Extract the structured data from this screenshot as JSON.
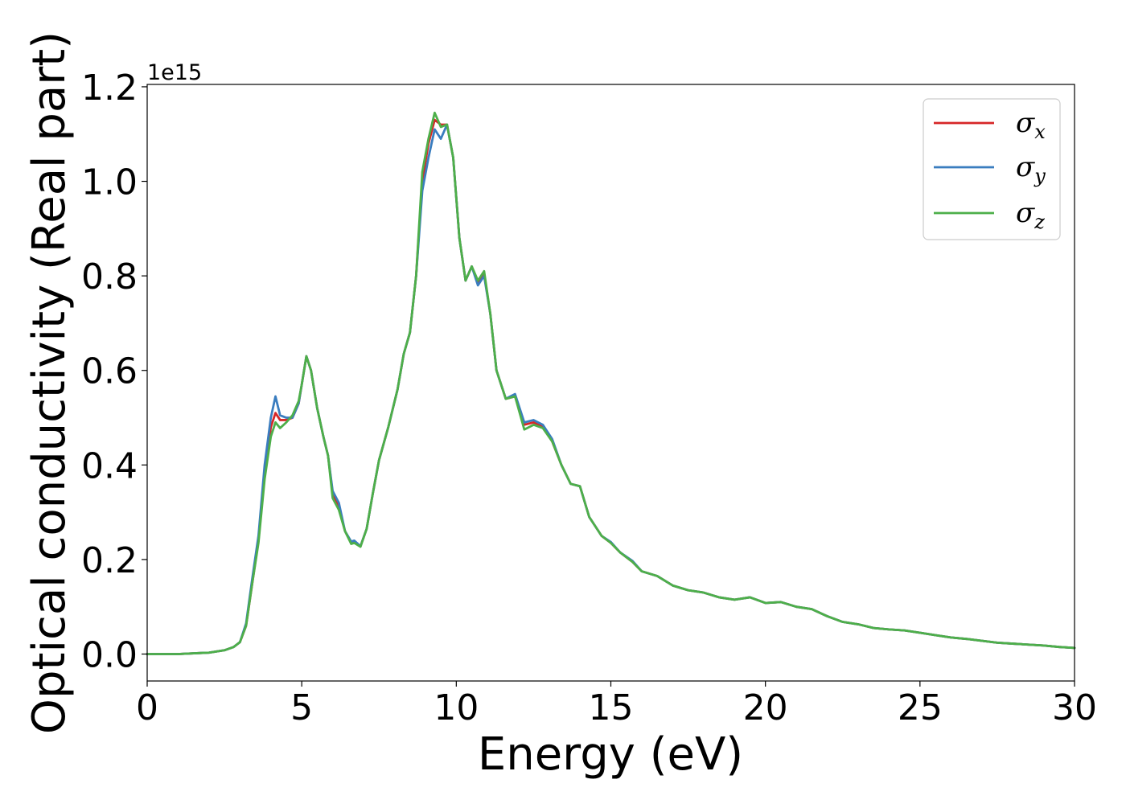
{
  "chart_data": {
    "type": "line",
    "title": "",
    "xlabel": "Energy (eV)",
    "ylabel": "Optical conductivity (Real part)",
    "y_offset_label": "1e15",
    "y_scale": 1000000000000000.0,
    "xlim": [
      0,
      30
    ],
    "ylim": [
      -0.057,
      1.205
    ],
    "x_ticks": [
      0,
      5,
      10,
      15,
      20,
      25,
      30
    ],
    "y_ticks": [
      0.0,
      0.2,
      0.4,
      0.6,
      0.8,
      1.0,
      1.2
    ],
    "x_tick_labels": [
      "0",
      "5",
      "10",
      "15",
      "20",
      "25",
      "30"
    ],
    "y_tick_labels": [
      "0.0",
      "0.2",
      "0.4",
      "0.6",
      "0.8",
      "1.0",
      "1.2"
    ],
    "grid": false,
    "legend_position": "top-right",
    "series": [
      {
        "name": "σ_x",
        "symbol": "σ",
        "subscript": "x",
        "color": "#d62728",
        "points": [
          [
            0,
            0.0
          ],
          [
            1,
            0.0
          ],
          [
            2,
            0.003
          ],
          [
            2.5,
            0.008
          ],
          [
            2.8,
            0.015
          ],
          [
            3.0,
            0.025
          ],
          [
            3.2,
            0.06
          ],
          [
            3.4,
            0.15
          ],
          [
            3.6,
            0.24
          ],
          [
            3.8,
            0.38
          ],
          [
            4.0,
            0.48
          ],
          [
            4.15,
            0.51
          ],
          [
            4.3,
            0.495
          ],
          [
            4.5,
            0.495
          ],
          [
            4.7,
            0.5
          ],
          [
            4.9,
            0.53
          ],
          [
            5.0,
            0.57
          ],
          [
            5.15,
            0.63
          ],
          [
            5.3,
            0.6
          ],
          [
            5.5,
            0.52
          ],
          [
            5.7,
            0.46
          ],
          [
            5.85,
            0.42
          ],
          [
            6.0,
            0.34
          ],
          [
            6.2,
            0.31
          ],
          [
            6.4,
            0.26
          ],
          [
            6.6,
            0.235
          ],
          [
            6.7,
            0.237
          ],
          [
            6.9,
            0.228
          ],
          [
            7.1,
            0.265
          ],
          [
            7.3,
            0.34
          ],
          [
            7.5,
            0.41
          ],
          [
            7.8,
            0.48
          ],
          [
            8.1,
            0.56
          ],
          [
            8.3,
            0.635
          ],
          [
            8.5,
            0.68
          ],
          [
            8.7,
            0.8
          ],
          [
            8.9,
            1.0
          ],
          [
            9.1,
            1.08
          ],
          [
            9.3,
            1.13
          ],
          [
            9.5,
            1.12
          ],
          [
            9.7,
            1.12
          ],
          [
            9.9,
            1.05
          ],
          [
            10.1,
            0.88
          ],
          [
            10.3,
            0.79
          ],
          [
            10.5,
            0.82
          ],
          [
            10.7,
            0.785
          ],
          [
            10.9,
            0.805
          ],
          [
            11.1,
            0.72
          ],
          [
            11.3,
            0.6
          ],
          [
            11.6,
            0.54
          ],
          [
            11.9,
            0.545
          ],
          [
            12.2,
            0.485
          ],
          [
            12.5,
            0.49
          ],
          [
            12.8,
            0.48
          ],
          [
            13.1,
            0.45
          ],
          [
            13.4,
            0.4
          ],
          [
            13.7,
            0.36
          ],
          [
            14.0,
            0.355
          ],
          [
            14.3,
            0.29
          ],
          [
            14.7,
            0.25
          ],
          [
            15.0,
            0.235
          ],
          [
            15.3,
            0.215
          ],
          [
            15.7,
            0.195
          ],
          [
            16.0,
            0.175
          ],
          [
            16.5,
            0.165
          ],
          [
            17.0,
            0.145
          ],
          [
            17.5,
            0.135
          ],
          [
            18.0,
            0.13
          ],
          [
            18.5,
            0.12
          ],
          [
            19.0,
            0.115
          ],
          [
            19.5,
            0.12
          ],
          [
            20.0,
            0.108
          ],
          [
            20.5,
            0.11
          ],
          [
            21.0,
            0.1
          ],
          [
            21.5,
            0.095
          ],
          [
            22.0,
            0.08
          ],
          [
            22.5,
            0.068
          ],
          [
            23.0,
            0.063
          ],
          [
            23.5,
            0.055
          ],
          [
            24.0,
            0.052
          ],
          [
            24.5,
            0.05
          ],
          [
            25.0,
            0.045
          ],
          [
            25.5,
            0.04
          ],
          [
            26.0,
            0.035
          ],
          [
            26.5,
            0.032
          ],
          [
            27.0,
            0.028
          ],
          [
            27.5,
            0.024
          ],
          [
            28.0,
            0.022
          ],
          [
            28.5,
            0.02
          ],
          [
            29.0,
            0.018
          ],
          [
            29.5,
            0.015
          ],
          [
            30.0,
            0.013
          ]
        ]
      },
      {
        "name": "σ_y",
        "symbol": "σ",
        "subscript": "y",
        "color": "#3a7dbf",
        "points": [
          [
            0,
            0.0
          ],
          [
            1,
            0.0
          ],
          [
            2,
            0.003
          ],
          [
            2.5,
            0.008
          ],
          [
            2.8,
            0.015
          ],
          [
            3.0,
            0.025
          ],
          [
            3.2,
            0.065
          ],
          [
            3.4,
            0.16
          ],
          [
            3.6,
            0.25
          ],
          [
            3.8,
            0.4
          ],
          [
            4.0,
            0.5
          ],
          [
            4.15,
            0.545
          ],
          [
            4.3,
            0.505
          ],
          [
            4.5,
            0.5
          ],
          [
            4.7,
            0.5
          ],
          [
            4.9,
            0.53
          ],
          [
            5.0,
            0.57
          ],
          [
            5.15,
            0.63
          ],
          [
            5.3,
            0.6
          ],
          [
            5.5,
            0.52
          ],
          [
            5.7,
            0.46
          ],
          [
            5.85,
            0.42
          ],
          [
            6.0,
            0.345
          ],
          [
            6.2,
            0.32
          ],
          [
            6.4,
            0.26
          ],
          [
            6.6,
            0.238
          ],
          [
            6.7,
            0.24
          ],
          [
            6.9,
            0.228
          ],
          [
            7.1,
            0.265
          ],
          [
            7.3,
            0.34
          ],
          [
            7.5,
            0.41
          ],
          [
            7.8,
            0.48
          ],
          [
            8.1,
            0.56
          ],
          [
            8.3,
            0.635
          ],
          [
            8.5,
            0.68
          ],
          [
            8.7,
            0.8
          ],
          [
            8.9,
            0.98
          ],
          [
            9.1,
            1.05
          ],
          [
            9.3,
            1.11
          ],
          [
            9.5,
            1.09
          ],
          [
            9.7,
            1.12
          ],
          [
            9.9,
            1.05
          ],
          [
            10.1,
            0.88
          ],
          [
            10.3,
            0.79
          ],
          [
            10.5,
            0.82
          ],
          [
            10.7,
            0.78
          ],
          [
            10.9,
            0.8
          ],
          [
            11.1,
            0.72
          ],
          [
            11.3,
            0.6
          ],
          [
            11.6,
            0.54
          ],
          [
            11.9,
            0.55
          ],
          [
            12.2,
            0.49
          ],
          [
            12.5,
            0.495
          ],
          [
            12.8,
            0.485
          ],
          [
            13.1,
            0.455
          ],
          [
            13.4,
            0.4
          ],
          [
            13.7,
            0.36
          ],
          [
            14.0,
            0.355
          ],
          [
            14.3,
            0.29
          ],
          [
            14.7,
            0.25
          ],
          [
            15.0,
            0.237
          ],
          [
            15.3,
            0.215
          ],
          [
            15.7,
            0.197
          ],
          [
            16.0,
            0.175
          ],
          [
            16.5,
            0.165
          ],
          [
            17.0,
            0.145
          ],
          [
            17.5,
            0.135
          ],
          [
            18.0,
            0.13
          ],
          [
            18.5,
            0.12
          ],
          [
            19.0,
            0.115
          ],
          [
            19.5,
            0.12
          ],
          [
            20.0,
            0.108
          ],
          [
            20.5,
            0.11
          ],
          [
            21.0,
            0.1
          ],
          [
            21.5,
            0.095
          ],
          [
            22.0,
            0.08
          ],
          [
            22.5,
            0.068
          ],
          [
            23.0,
            0.063
          ],
          [
            23.5,
            0.055
          ],
          [
            24.0,
            0.052
          ],
          [
            24.5,
            0.05
          ],
          [
            25.0,
            0.045
          ],
          [
            25.5,
            0.04
          ],
          [
            26.0,
            0.035
          ],
          [
            26.5,
            0.032
          ],
          [
            27.0,
            0.028
          ],
          [
            27.5,
            0.024
          ],
          [
            28.0,
            0.022
          ],
          [
            28.5,
            0.02
          ],
          [
            29.0,
            0.018
          ],
          [
            29.5,
            0.015
          ],
          [
            30.0,
            0.013
          ]
        ]
      },
      {
        "name": "σ_z",
        "symbol": "σ",
        "subscript": "z",
        "color": "#4daf4a",
        "points": [
          [
            0,
            0.0
          ],
          [
            1,
            0.0
          ],
          [
            2,
            0.003
          ],
          [
            2.5,
            0.008
          ],
          [
            2.8,
            0.015
          ],
          [
            3.0,
            0.025
          ],
          [
            3.2,
            0.06
          ],
          [
            3.4,
            0.15
          ],
          [
            3.6,
            0.235
          ],
          [
            3.8,
            0.37
          ],
          [
            4.0,
            0.46
          ],
          [
            4.15,
            0.49
          ],
          [
            4.3,
            0.478
          ],
          [
            4.5,
            0.49
          ],
          [
            4.7,
            0.505
          ],
          [
            4.9,
            0.535
          ],
          [
            5.0,
            0.57
          ],
          [
            5.15,
            0.63
          ],
          [
            5.3,
            0.6
          ],
          [
            5.5,
            0.52
          ],
          [
            5.7,
            0.46
          ],
          [
            5.85,
            0.42
          ],
          [
            6.0,
            0.33
          ],
          [
            6.2,
            0.305
          ],
          [
            6.4,
            0.26
          ],
          [
            6.6,
            0.233
          ],
          [
            6.7,
            0.235
          ],
          [
            6.9,
            0.227
          ],
          [
            7.1,
            0.265
          ],
          [
            7.3,
            0.34
          ],
          [
            7.5,
            0.41
          ],
          [
            7.8,
            0.48
          ],
          [
            8.1,
            0.56
          ],
          [
            8.3,
            0.635
          ],
          [
            8.5,
            0.68
          ],
          [
            8.7,
            0.8
          ],
          [
            8.9,
            1.02
          ],
          [
            9.1,
            1.09
          ],
          [
            9.3,
            1.145
          ],
          [
            9.5,
            1.115
          ],
          [
            9.7,
            1.12
          ],
          [
            9.9,
            1.05
          ],
          [
            10.1,
            0.88
          ],
          [
            10.3,
            0.79
          ],
          [
            10.5,
            0.82
          ],
          [
            10.7,
            0.79
          ],
          [
            10.9,
            0.81
          ],
          [
            11.1,
            0.72
          ],
          [
            11.3,
            0.6
          ],
          [
            11.6,
            0.54
          ],
          [
            11.9,
            0.545
          ],
          [
            12.2,
            0.475
          ],
          [
            12.5,
            0.485
          ],
          [
            12.8,
            0.478
          ],
          [
            13.1,
            0.45
          ],
          [
            13.4,
            0.4
          ],
          [
            13.7,
            0.36
          ],
          [
            14.0,
            0.355
          ],
          [
            14.3,
            0.29
          ],
          [
            14.7,
            0.25
          ],
          [
            15.0,
            0.235
          ],
          [
            15.3,
            0.215
          ],
          [
            15.7,
            0.195
          ],
          [
            16.0,
            0.175
          ],
          [
            16.5,
            0.165
          ],
          [
            17.0,
            0.145
          ],
          [
            17.5,
            0.135
          ],
          [
            18.0,
            0.13
          ],
          [
            18.5,
            0.12
          ],
          [
            19.0,
            0.115
          ],
          [
            19.5,
            0.12
          ],
          [
            20.0,
            0.108
          ],
          [
            20.5,
            0.11
          ],
          [
            21.0,
            0.1
          ],
          [
            21.5,
            0.095
          ],
          [
            22.0,
            0.08
          ],
          [
            22.5,
            0.068
          ],
          [
            23.0,
            0.063
          ],
          [
            23.5,
            0.055
          ],
          [
            24.0,
            0.052
          ],
          [
            24.5,
            0.05
          ],
          [
            25.0,
            0.045
          ],
          [
            25.5,
            0.04
          ],
          [
            26.0,
            0.035
          ],
          [
            26.5,
            0.032
          ],
          [
            27.0,
            0.028
          ],
          [
            27.5,
            0.024
          ],
          [
            28.0,
            0.022
          ],
          [
            28.5,
            0.02
          ],
          [
            29.0,
            0.018
          ],
          [
            29.5,
            0.015
          ],
          [
            30.0,
            0.013
          ]
        ]
      }
    ]
  }
}
